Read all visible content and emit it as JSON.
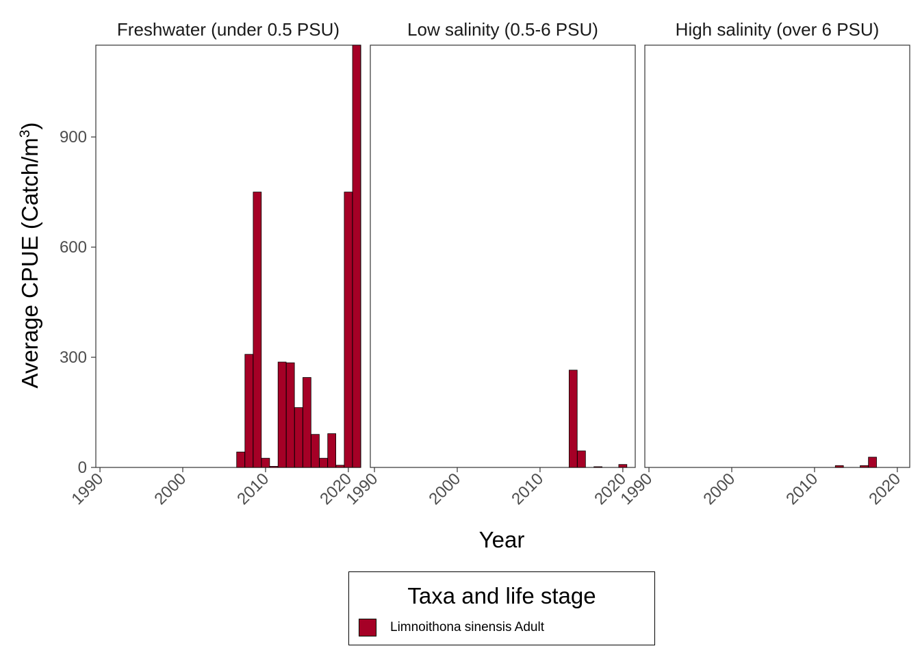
{
  "chart_data": {
    "type": "bar",
    "xlabel": "Year",
    "ylabel_main": "Average CPUE (Catch/m",
    "ylabel_sup": "3",
    "ylabel_close": ")",
    "y_ticks": [
      0,
      300,
      600,
      900
    ],
    "ylim": [
      0,
      1150
    ],
    "x_ticks": [
      1990,
      2000,
      2010,
      2020
    ],
    "xlim": [
      1989.5,
      2021.5
    ],
    "grid": false,
    "bar_color": "#A50026",
    "panels": [
      {
        "title": "Freshwater (under 0.5 PSU)",
        "x": [
          2007,
          2008,
          2009,
          2010,
          2011,
          2012,
          2013,
          2014,
          2015,
          2016,
          2017,
          2018,
          2019,
          2020,
          2021
        ],
        "values": [
          42,
          308,
          750,
          25,
          3,
          287,
          285,
          163,
          245,
          90,
          25,
          92,
          6,
          750,
          1150
        ]
      },
      {
        "title": "Low salinity (0.5-6 PSU)",
        "x": [
          2014,
          2015,
          2017,
          2020
        ],
        "values": [
          265,
          45,
          2,
          8
        ]
      },
      {
        "title": "High salinity (over 6 PSU)",
        "x": [
          2013,
          2016,
          2017
        ],
        "values": [
          5,
          5,
          28
        ]
      }
    ],
    "legend": {
      "title": "Taxa and life stage",
      "entries": [
        {
          "label": "Limnoithona sinensis Adult",
          "color": "#A50026"
        }
      ],
      "position": "bottom"
    }
  }
}
